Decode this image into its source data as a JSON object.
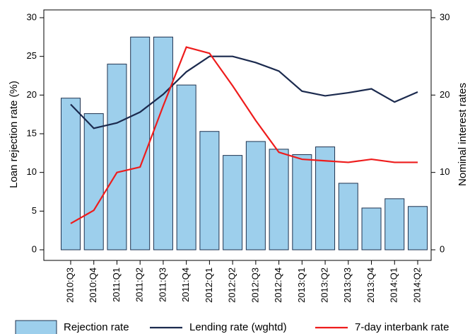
{
  "chart_data": {
    "type": "bar",
    "y_label": "Loan rejection rate (%)",
    "y2_label": "Nominal interest rates",
    "categories": [
      "2010:Q3",
      "2010:Q4",
      "2011:Q1",
      "2011:Q2",
      "2011:Q3",
      "2011:Q4",
      "2012:Q1",
      "2012:Q2",
      "2012:Q3",
      "2012:Q4",
      "2013:Q1",
      "2013:Q2",
      "2013:Q3",
      "2013:Q4",
      "2014:Q1",
      "2014:Q2"
    ],
    "series": [
      {
        "name": "Rejection rate",
        "type": "bar",
        "color": "#9dcfec",
        "edgecolor": "#1f3350",
        "values": [
          19.6,
          17.6,
          24.0,
          27.5,
          27.5,
          21.3,
          15.3,
          12.2,
          14.0,
          13.0,
          12.3,
          13.3,
          8.6,
          5.4,
          6.6,
          5.6
        ]
      },
      {
        "name": "Lending rate (wghtd)",
        "type": "line",
        "axis": "y2",
        "color": "#1b2a4e",
        "values": [
          18.8,
          15.7,
          16.4,
          17.8,
          20.1,
          23.0,
          25.0,
          25.0,
          24.2,
          23.1,
          20.5,
          19.9,
          20.3,
          20.8,
          19.1,
          20.4
        ]
      },
      {
        "name": "7-day interbank rate",
        "type": "line",
        "axis": "y2",
        "color": "#ee1c1c",
        "values": [
          3.4,
          5.1,
          10.0,
          10.7,
          18.6,
          26.2,
          25.4,
          21.2,
          16.7,
          12.6,
          11.7,
          11.5,
          11.3,
          11.7,
          11.3,
          11.3
        ]
      }
    ],
    "ylim": [
      0,
      30
    ],
    "yticks": [
      0,
      5,
      10,
      15,
      20,
      25,
      30
    ],
    "y2lim": [
      0,
      30
    ],
    "y2ticks": [
      0,
      10,
      20,
      30
    ],
    "grid": false
  }
}
